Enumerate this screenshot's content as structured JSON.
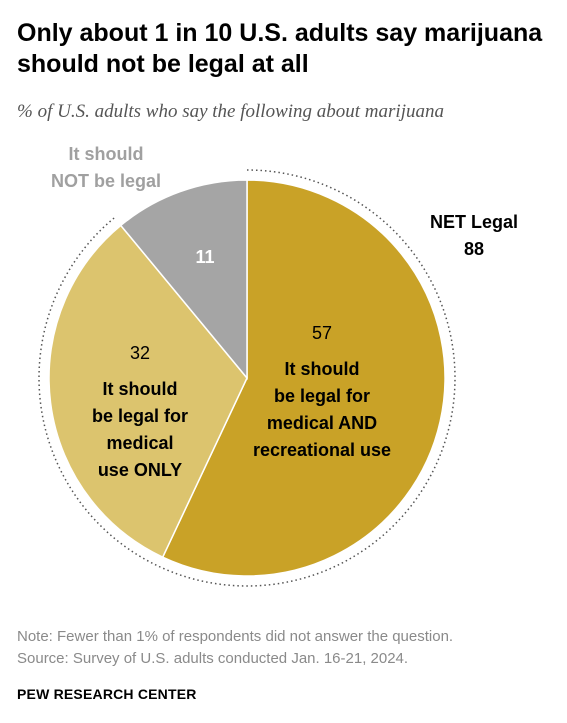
{
  "title": "Only about 1 in 10 U.S. adults say marijuana should not be legal at all",
  "subtitle": "% of U.S. adults who say the following about marijuana",
  "chart_data": {
    "type": "pie",
    "slices": [
      {
        "value": 57,
        "value_label": "57",
        "label_lines": [
          "It should",
          "be legal for",
          "medical AND",
          "recreational use"
        ],
        "color": "#c9a227"
      },
      {
        "value": 32,
        "value_label": "32",
        "label_lines": [
          "It should",
          "be legal for",
          "medical",
          "use ONLY"
        ],
        "color": "#dcc46e"
      },
      {
        "value": 11,
        "value_label": "11",
        "label_lines": [
          "It should",
          "NOT be legal"
        ],
        "color": "#a5a5a5"
      }
    ],
    "annotation": {
      "lines": [
        "NET Legal",
        "88"
      ]
    },
    "colors": {
      "outside_label": "#a0a0a0",
      "bracket": "#555555"
    }
  },
  "note": "Note: Fewer than 1% of respondents did not answer the question.",
  "source": "Source: Survey of U.S. adults conducted Jan. 16-21, 2024.",
  "org": "PEW RESEARCH CENTER"
}
